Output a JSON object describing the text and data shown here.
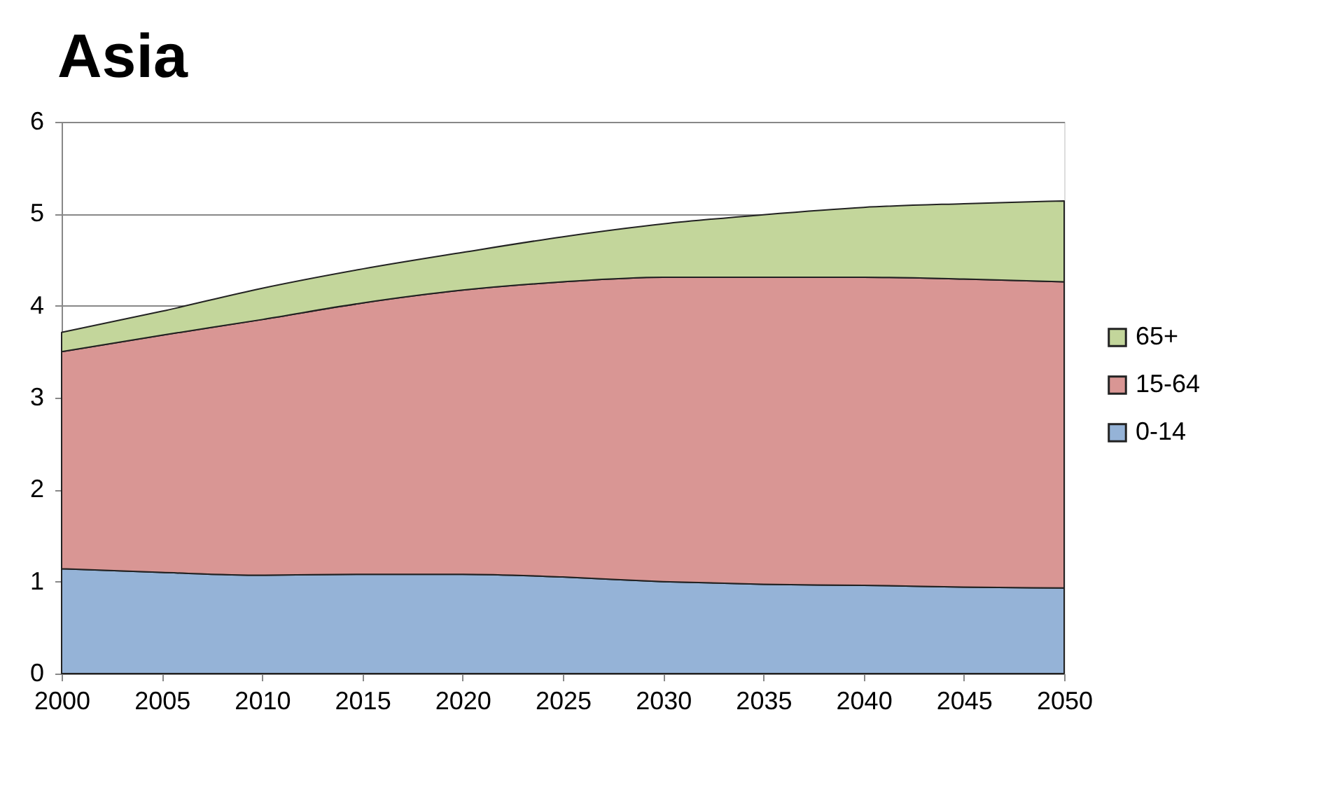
{
  "chart_data": {
    "type": "area",
    "title": "Asia",
    "stacked": true,
    "x": [
      2000,
      2005,
      2010,
      2015,
      2020,
      2025,
      2030,
      2035,
      2040,
      2045,
      2050
    ],
    "series": [
      {
        "name": "0-14",
        "color": "#95b3d7",
        "values": [
          1.14,
          1.1,
          1.07,
          1.08,
          1.08,
          1.05,
          1.0,
          0.97,
          0.96,
          0.94,
          0.93
        ]
      },
      {
        "name": "15-64",
        "color": "#d99694",
        "values": [
          2.36,
          2.58,
          2.78,
          2.95,
          3.09,
          3.21,
          3.31,
          3.34,
          3.35,
          3.35,
          3.33
        ]
      },
      {
        "name": "65+",
        "color": "#c3d69b",
        "values": [
          0.21,
          0.26,
          0.34,
          0.37,
          0.41,
          0.49,
          0.58,
          0.68,
          0.76,
          0.82,
          0.88
        ]
      }
    ],
    "xlim": [
      2000,
      2050
    ],
    "xticks": [
      2000,
      2005,
      2010,
      2015,
      2020,
      2025,
      2030,
      2035,
      2040,
      2045,
      2050
    ],
    "ylim": [
      0,
      6
    ],
    "yticks": [
      0,
      1,
      2,
      3,
      4,
      5,
      6
    ],
    "grid": "y",
    "legend": "right"
  }
}
